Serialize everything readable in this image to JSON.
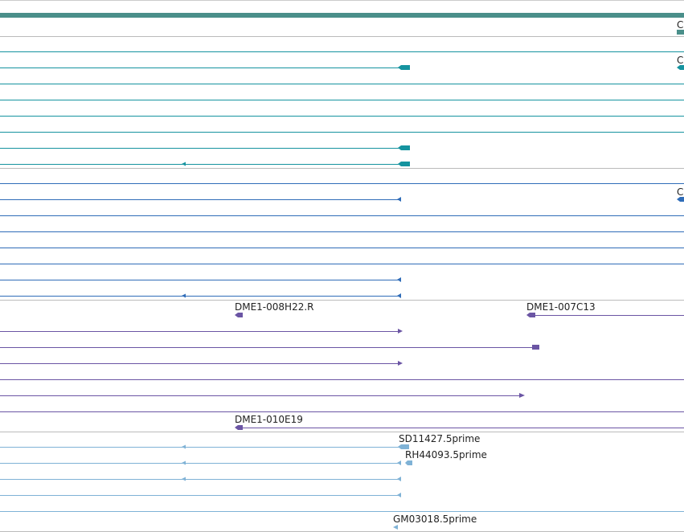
{
  "colors": {
    "band": "#4a8f8a",
    "teal": "#15939f",
    "blue": "#2f6cb8",
    "purple": "#6b55a4",
    "lightblue": "#7fb2d6",
    "separator": "#bbbbbb"
  },
  "labels": {
    "dme1_008h22_r": "DME1-008H22.R",
    "dme1_007c13": "DME1-007C13",
    "dme1_010e19": "DME1-010E19",
    "sd11427_5prime": "SD11427.5prime",
    "rh44093_5prime": "RH44093.5prime",
    "gm03018_5prime": "GM03018.5prime",
    "edge_c_1": "C",
    "edge_c_2": "C",
    "edge_c_3": "C"
  }
}
